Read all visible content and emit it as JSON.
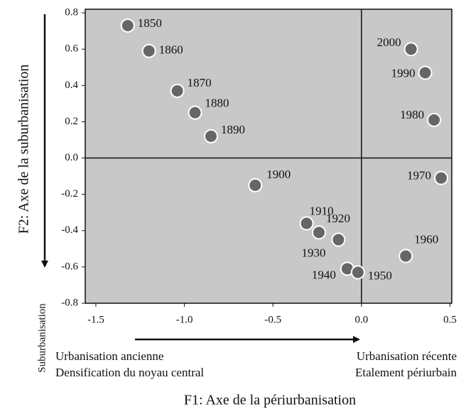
{
  "chart_data": {
    "type": "scatter",
    "x_label": "F1: Axe de la périurbanisation",
    "y_label": "F2: Axe de la suburbanisation",
    "annotations": [
      "Suburbanisation",
      "Urbanisation ancienne",
      "Densification du noyau central",
      "Urbanisation récente",
      "Etalement périurbain"
    ],
    "labels": [
      "1850",
      "1860",
      "1870",
      "1880",
      "1890",
      "1900",
      "1910",
      "1920",
      "1930",
      "1940",
      "1950",
      "1960",
      "1970",
      "1980",
      "1990",
      "2000"
    ],
    "x": [
      -1.32,
      -1.2,
      -1.04,
      -0.94,
      -0.85,
      -0.6,
      -0.31,
      -0.24,
      -0.13,
      -0.08,
      -0.02,
      0.25,
      0.45,
      0.41,
      0.36,
      0.28
    ],
    "y": [
      0.73,
      0.59,
      0.37,
      0.25,
      0.12,
      -0.15,
      -0.36,
      -0.41,
      -0.45,
      -0.61,
      -0.63,
      -0.54,
      -0.11,
      0.21,
      0.47,
      0.6
    ],
    "color": "#666666",
    "background": "#c8c8c8",
    "xlim": [
      -1.56,
      0.51
    ],
    "xticks": [
      {
        "value": -1.5,
        "label": "-1.5"
      },
      {
        "value": -1,
        "label": "-1.0"
      },
      -0.5,
      {
        "value": 0,
        "label": "0.0"
      },
      0.5
    ],
    "ylim": [
      -0.8,
      0.82
    ],
    "yticks": [
      0.8,
      0.6,
      0.4,
      0.2,
      {
        "value": 0,
        "label": "0.0"
      },
      -0.2,
      -0.4,
      -0.6,
      -0.8
    ]
  }
}
